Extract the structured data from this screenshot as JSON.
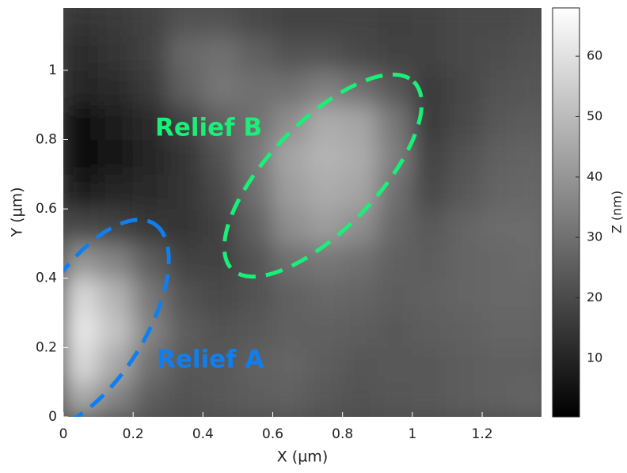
{
  "chart_data": {
    "type": "heatmap",
    "xlabel": "X (µm)",
    "ylabel": "Y (µm)",
    "colorbar_label": "Z (nm)",
    "x": [
      0.05,
      0.15,
      0.25,
      0.35,
      0.45,
      0.55,
      0.65,
      0.75,
      0.85,
      0.95,
      1.05,
      1.15,
      1.25,
      1.35
    ],
    "y": [
      0.05,
      0.15,
      0.25,
      0.35,
      0.45,
      0.55,
      0.65,
      0.75,
      0.85,
      0.95,
      1.05,
      1.15
    ],
    "z": [
      [
        45,
        35,
        25,
        22,
        24,
        25,
        26,
        24,
        22,
        23,
        24,
        25,
        26,
        27
      ],
      [
        58,
        45,
        30,
        24,
        24,
        26,
        27,
        25,
        23,
        24,
        24,
        25,
        26,
        26
      ],
      [
        62,
        52,
        35,
        25,
        22,
        24,
        26,
        26,
        25,
        24,
        25,
        26,
        27,
        27
      ],
      [
        58,
        48,
        32,
        22,
        20,
        22,
        26,
        28,
        27,
        25,
        26,
        27,
        28,
        28
      ],
      [
        40,
        35,
        25,
        18,
        18,
        22,
        30,
        32,
        30,
        26,
        25,
        27,
        28,
        29
      ],
      [
        20,
        18,
        15,
        14,
        18,
        26,
        38,
        42,
        38,
        28,
        24,
        27,
        29,
        29
      ],
      [
        8,
        10,
        12,
        14,
        20,
        30,
        42,
        46,
        44,
        30,
        20,
        24,
        27,
        28
      ],
      [
        3,
        6,
        10,
        14,
        22,
        32,
        44,
        48,
        46,
        34,
        18,
        22,
        26,
        27
      ],
      [
        4,
        8,
        12,
        18,
        26,
        30,
        38,
        46,
        44,
        32,
        16,
        20,
        24,
        25
      ],
      [
        10,
        12,
        16,
        26,
        32,
        30,
        30,
        34,
        30,
        24,
        16,
        19,
        22,
        23
      ],
      [
        12,
        14,
        18,
        28,
        30,
        26,
        22,
        22,
        20,
        18,
        18,
        20,
        21,
        22
      ],
      [
        14,
        16,
        18,
        22,
        22,
        20,
        18,
        18,
        18,
        17,
        18,
        20,
        20,
        21
      ]
    ],
    "xlim": [
      0,
      1.37
    ],
    "ylim": [
      0,
      1.18
    ],
    "clim": [
      0.3,
      68
    ],
    "xticks": [
      0,
      0.2,
      0.4,
      0.6,
      0.8,
      1,
      1.2
    ],
    "yticks": [
      0,
      0.2,
      0.4,
      0.6,
      0.8,
      1
    ],
    "cticks": [
      10,
      20,
      30,
      40,
      50,
      60
    ],
    "colormap": [
      "#000000",
      "#ffffff"
    ],
    "annotations": [
      {
        "text": "Relief A",
        "color": "#0f7ff0"
      },
      {
        "text": "Relief B",
        "color": "#19f078"
      }
    ]
  }
}
